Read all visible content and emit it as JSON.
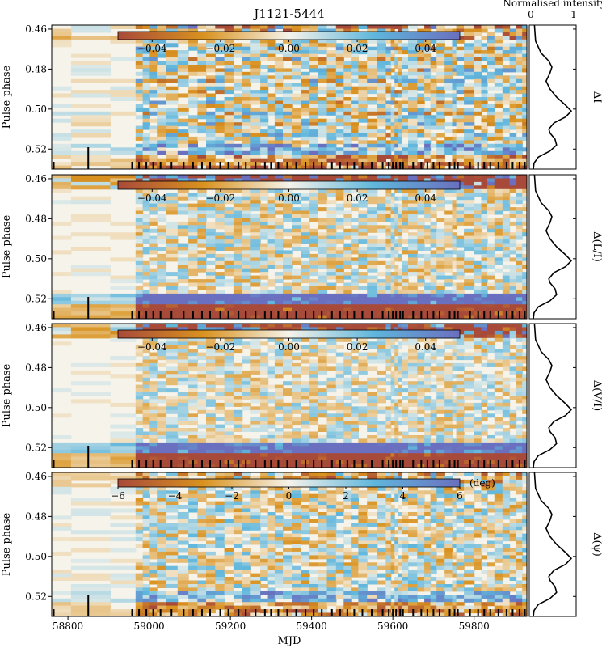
{
  "figure": {
    "title": "J1121-5444",
    "xlabel": "MJD",
    "profile_header": "Normalised intensity",
    "profile_ticks": [
      "0",
      "1"
    ],
    "colors": {
      "neg_strong": "#a84a3a",
      "neg_mid": "#d9921f",
      "zero": "#f6f3ea",
      "pos_mid": "#5fb6dc",
      "pos_strong": "#6a6fbf"
    }
  },
  "chart_data": [
    {
      "type": "heatmap",
      "panel": "dI",
      "label": "ΔI",
      "ylabel": "Pulse phase",
      "xlabel": "",
      "xlim": [
        58760,
        59930
      ],
      "ylim": [
        0.53,
        0.458
      ],
      "yticks": [
        "0.46",
        "0.48",
        "0.50",
        "0.52"
      ],
      "colorbar": {
        "range": [
          -0.05,
          0.05
        ],
        "ticks": [
          "−0.04",
          "−0.02",
          "0.00",
          "0.02",
          "0.04"
        ],
        "unit": ""
      },
      "seed": 11,
      "edge_strength": 0.55,
      "noise": 0.55,
      "blockiness": true
    },
    {
      "type": "heatmap",
      "panel": "dL",
      "label": "Δ(L/I)",
      "ylabel": "Pulse phase",
      "xlabel": "",
      "xlim": [
        58760,
        59930
      ],
      "ylim": [
        0.53,
        0.458
      ],
      "yticks": [
        "0.46",
        "0.48",
        "0.50",
        "0.52"
      ],
      "colorbar": {
        "range": [
          -0.05,
          0.05
        ],
        "ticks": [
          "−0.04",
          "−0.02",
          "0.00",
          "0.02",
          "0.04"
        ],
        "unit": ""
      },
      "seed": 23,
      "edge_strength": 1.6,
      "noise": 0.45,
      "blockiness": false
    },
    {
      "type": "heatmap",
      "panel": "dV",
      "label": "Δ(V/I)",
      "ylabel": "Pulse phase",
      "xlabel": "",
      "xlim": [
        58760,
        59930
      ],
      "ylim": [
        0.53,
        0.458
      ],
      "yticks": [
        "0.46",
        "0.48",
        "0.50",
        "0.52"
      ],
      "colorbar": {
        "range": [
          -0.05,
          0.05
        ],
        "ticks": [
          "−0.04",
          "−0.02",
          "0.00",
          "0.02",
          "0.04"
        ],
        "unit": ""
      },
      "seed": 37,
      "edge_strength": 1.5,
      "noise": 0.4,
      "blockiness": false
    },
    {
      "type": "heatmap",
      "panel": "dpsi",
      "label": "Δ(ψ)",
      "ylabel": "Pulse phase",
      "xlabel": "MJD",
      "xlim": [
        58760,
        59930
      ],
      "ylim": [
        0.53,
        0.458
      ],
      "yticks": [
        "0.46",
        "0.48",
        "0.50",
        "0.52"
      ],
      "xticks": [
        "58800",
        "59000",
        "59200",
        "59400",
        "59600",
        "59800"
      ],
      "colorbar": {
        "range": [
          -6,
          6
        ],
        "ticks": [
          "−6",
          "−4",
          "−2",
          "0",
          "2",
          "4",
          "6"
        ],
        "unit": "(deg)"
      },
      "seed": 51,
      "edge_strength": 0.5,
      "noise": 0.5,
      "blockiness": false
    }
  ],
  "observation_epochs": [
    58765,
    58850,
    58958,
    58975,
    58993,
    59010,
    59028,
    59055,
    59085,
    59108,
    59130,
    59150,
    59175,
    59195,
    59220,
    59238,
    59262,
    59285,
    59300,
    59318,
    59340,
    59362,
    59385,
    59405,
    59425,
    59450,
    59470,
    59488,
    59505,
    59525,
    59548,
    59575,
    59590,
    59600,
    59608,
    59618,
    59625,
    59650,
    59670,
    59685,
    59700,
    59715,
    59740,
    59752,
    59760,
    59790,
    59810,
    59825,
    59840,
    59860,
    59880,
    59895,
    59912,
    59925
  ],
  "profile": {
    "phase": [
      0.458,
      0.466,
      0.472,
      0.476,
      0.479,
      0.482,
      0.486,
      0.49,
      0.494,
      0.498,
      0.501,
      0.504,
      0.507,
      0.51,
      0.512,
      0.515,
      0.518,
      0.521,
      0.524,
      0.527,
      0.53
    ],
    "intensity": [
      0.05,
      0.08,
      0.22,
      0.42,
      0.5,
      0.45,
      0.35,
      0.45,
      0.62,
      0.85,
      1.0,
      0.85,
      0.55,
      0.42,
      0.45,
      0.58,
      0.62,
      0.45,
      0.15,
      0.04,
      0.02
    ]
  }
}
